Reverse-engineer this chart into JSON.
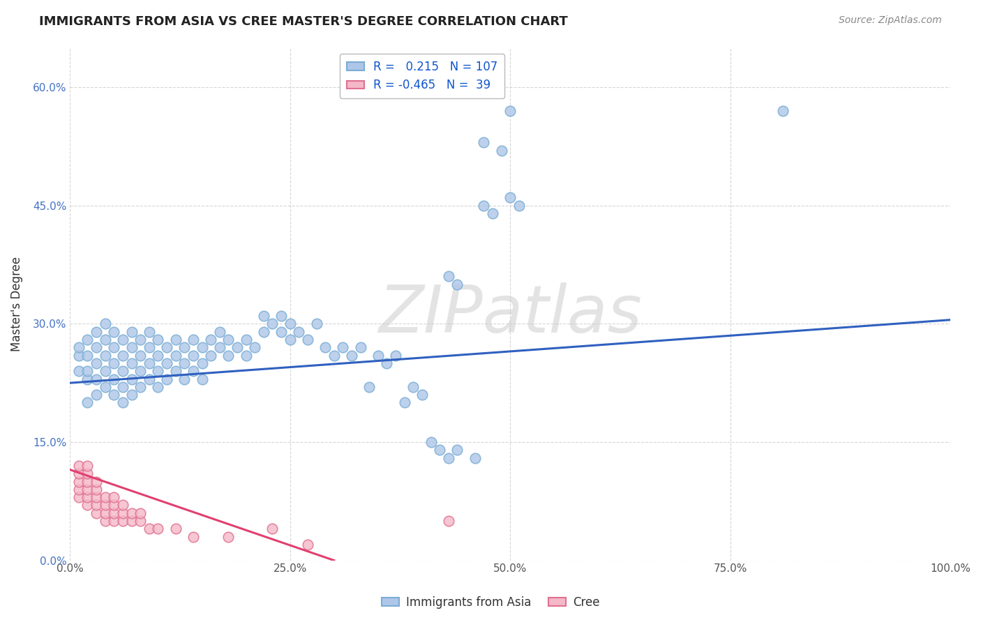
{
  "title": "IMMIGRANTS FROM ASIA VS CREE MASTER'S DEGREE CORRELATION CHART",
  "source": "Source: ZipAtlas.com",
  "ylabel_label": "Master's Degree",
  "xlim": [
    0.0,
    1.0
  ],
  "ylim": [
    0.0,
    0.65
  ],
  "x_ticks": [
    0.0,
    0.25,
    0.5,
    0.75,
    1.0
  ],
  "x_tick_labels": [
    "0.0%",
    "25.0%",
    "50.0%",
    "75.0%",
    "100.0%"
  ],
  "y_ticks": [
    0.0,
    0.15,
    0.3,
    0.45,
    0.6
  ],
  "y_tick_labels": [
    "0.0%",
    "15.0%",
    "30.0%",
    "45.0%",
    "60.0%"
  ],
  "asia_color": "#aec6e8",
  "asia_edge_color": "#7aadd4",
  "cree_color": "#f4b8c8",
  "cree_edge_color": "#e07090",
  "asia_line_color": "#3060c0",
  "cree_line_color": "#e04070",
  "background_color": "#ffffff",
  "grid_color": "#cccccc",
  "watermark": "ZIPatlas",
  "asia_R": 0.215,
  "cree_R": -0.465,
  "asia_N": 107,
  "cree_N": 39,
  "asia_line_x0": 0.0,
  "asia_line_y0": 0.225,
  "asia_line_x1": 1.0,
  "asia_line_y1": 0.305,
  "cree_line_x0": 0.0,
  "cree_line_y0": 0.115,
  "cree_line_x1": 0.3,
  "cree_line_y1": 0.0,
  "legend_asia_label": "Immigrants from Asia",
  "legend_cree_label": "Cree",
  "asia_x": [
    0.01,
    0.01,
    0.01,
    0.02,
    0.02,
    0.02,
    0.02,
    0.02,
    0.03,
    0.03,
    0.03,
    0.03,
    0.03,
    0.04,
    0.04,
    0.04,
    0.04,
    0.04,
    0.05,
    0.05,
    0.05,
    0.05,
    0.05,
    0.06,
    0.06,
    0.06,
    0.06,
    0.06,
    0.07,
    0.07,
    0.07,
    0.07,
    0.07,
    0.08,
    0.08,
    0.08,
    0.08,
    0.09,
    0.09,
    0.09,
    0.09,
    0.1,
    0.1,
    0.1,
    0.1,
    0.11,
    0.11,
    0.11,
    0.12,
    0.12,
    0.12,
    0.13,
    0.13,
    0.13,
    0.14,
    0.14,
    0.14,
    0.15,
    0.15,
    0.15,
    0.16,
    0.16,
    0.17,
    0.17,
    0.18,
    0.18,
    0.19,
    0.2,
    0.2,
    0.21,
    0.22,
    0.22,
    0.23,
    0.24,
    0.24,
    0.25,
    0.25,
    0.26,
    0.27,
    0.28,
    0.29,
    0.3,
    0.31,
    0.32,
    0.33,
    0.34,
    0.35,
    0.36,
    0.37,
    0.38,
    0.39,
    0.4,
    0.41,
    0.42,
    0.44,
    0.46,
    0.47,
    0.48,
    0.5,
    0.51,
    0.43,
    0.44,
    0.47,
    0.49,
    0.5,
    0.81,
    0.43
  ],
  "asia_y": [
    0.24,
    0.26,
    0.27,
    0.2,
    0.23,
    0.24,
    0.26,
    0.28,
    0.21,
    0.23,
    0.25,
    0.27,
    0.29,
    0.22,
    0.24,
    0.26,
    0.28,
    0.3,
    0.21,
    0.23,
    0.25,
    0.27,
    0.29,
    0.2,
    0.22,
    0.24,
    0.26,
    0.28,
    0.21,
    0.23,
    0.25,
    0.27,
    0.29,
    0.22,
    0.24,
    0.26,
    0.28,
    0.23,
    0.25,
    0.27,
    0.29,
    0.22,
    0.24,
    0.26,
    0.28,
    0.23,
    0.25,
    0.27,
    0.24,
    0.26,
    0.28,
    0.23,
    0.25,
    0.27,
    0.24,
    0.26,
    0.28,
    0.23,
    0.25,
    0.27,
    0.26,
    0.28,
    0.27,
    0.29,
    0.26,
    0.28,
    0.27,
    0.26,
    0.28,
    0.27,
    0.29,
    0.31,
    0.3,
    0.29,
    0.31,
    0.28,
    0.3,
    0.29,
    0.28,
    0.3,
    0.27,
    0.26,
    0.27,
    0.26,
    0.27,
    0.22,
    0.26,
    0.25,
    0.26,
    0.2,
    0.22,
    0.21,
    0.15,
    0.14,
    0.14,
    0.13,
    0.45,
    0.44,
    0.46,
    0.45,
    0.36,
    0.35,
    0.53,
    0.52,
    0.57,
    0.57,
    0.13
  ],
  "cree_x": [
    0.01,
    0.01,
    0.01,
    0.01,
    0.01,
    0.02,
    0.02,
    0.02,
    0.02,
    0.02,
    0.02,
    0.03,
    0.03,
    0.03,
    0.03,
    0.03,
    0.04,
    0.04,
    0.04,
    0.04,
    0.05,
    0.05,
    0.05,
    0.05,
    0.06,
    0.06,
    0.06,
    0.07,
    0.07,
    0.08,
    0.08,
    0.09,
    0.1,
    0.12,
    0.14,
    0.18,
    0.23,
    0.27,
    0.43
  ],
  "cree_y": [
    0.08,
    0.09,
    0.1,
    0.11,
    0.12,
    0.07,
    0.08,
    0.09,
    0.1,
    0.11,
    0.12,
    0.06,
    0.07,
    0.08,
    0.09,
    0.1,
    0.05,
    0.06,
    0.07,
    0.08,
    0.05,
    0.06,
    0.07,
    0.08,
    0.05,
    0.06,
    0.07,
    0.05,
    0.06,
    0.05,
    0.06,
    0.04,
    0.04,
    0.04,
    0.03,
    0.03,
    0.04,
    0.02,
    0.05
  ]
}
